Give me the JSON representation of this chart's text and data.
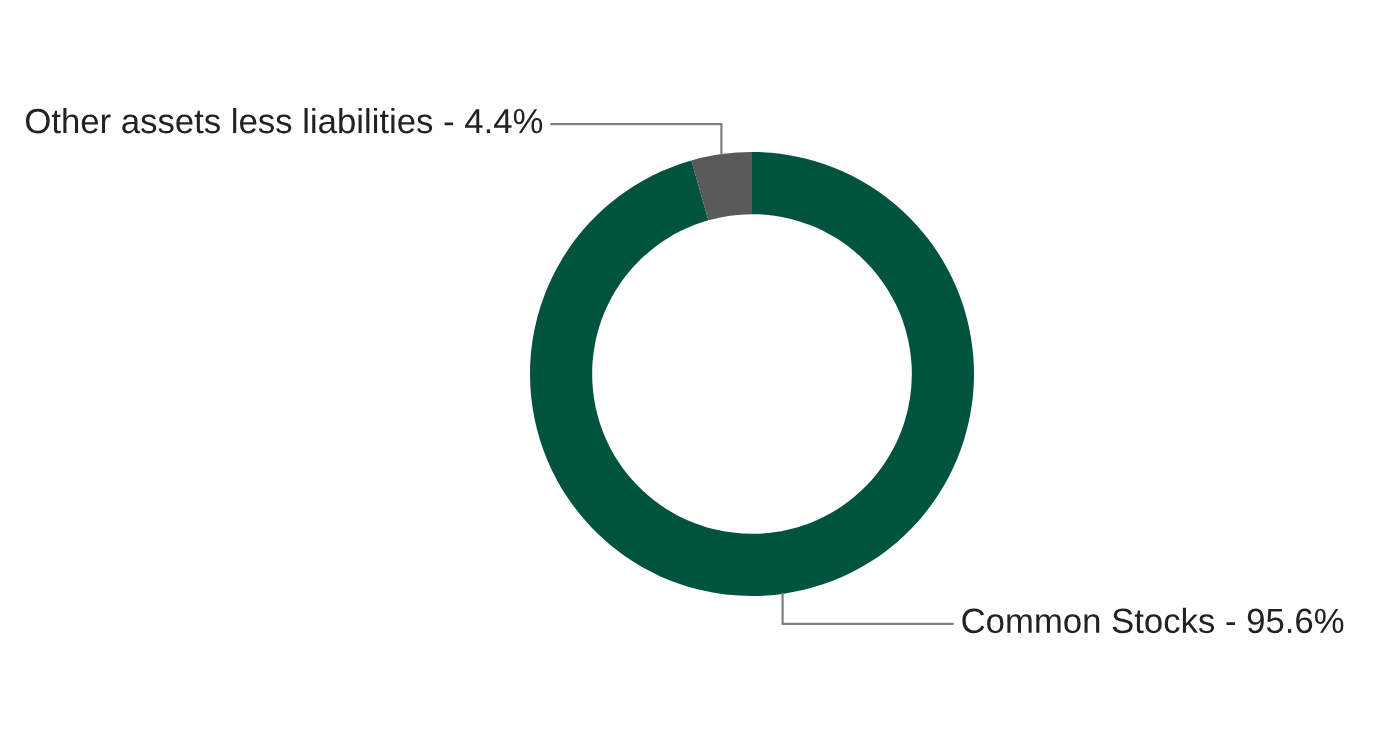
{
  "chart_data": {
    "type": "donut",
    "categories": [
      "Common Stocks",
      "Other assets less liabilities"
    ],
    "values": [
      95.6,
      4.4
    ],
    "value_labels": [
      "95.6%",
      "4.4%"
    ],
    "colors": [
      "#00533f",
      "#595959"
    ]
  }
}
